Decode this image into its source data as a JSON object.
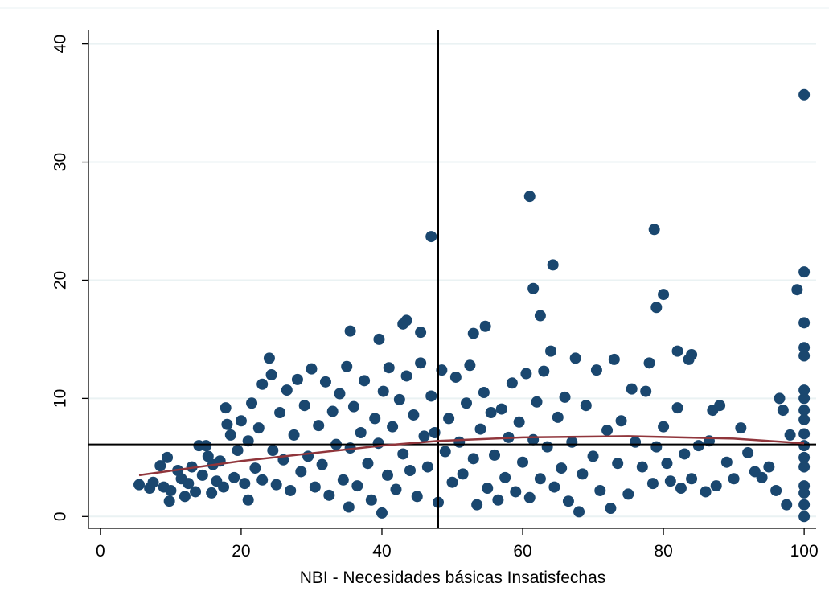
{
  "chart_data": {
    "type": "scatter",
    "xlabel": "NBI - Necesidades básicas Insatisfechas",
    "xlim": [
      -1.7,
      101.7
    ],
    "ylim": [
      -1.0,
      41.2
    ],
    "xticks": [
      0,
      20,
      40,
      60,
      80,
      100
    ],
    "yticks": [
      0,
      10,
      20,
      30,
      40
    ],
    "grid": true,
    "xline": 48,
    "yline": 6.1,
    "series": [
      {
        "color": "#1a476f",
        "x": [
          5.5,
          7,
          7.5,
          8.5,
          9,
          9.5,
          9.8,
          10,
          11,
          11.5,
          12,
          12.5,
          13,
          13.5,
          14,
          14.5,
          15,
          15.3,
          15.8,
          16,
          16.5,
          17,
          17.5,
          17.8,
          18,
          18.5,
          19,
          19.5,
          20,
          20.5,
          21,
          21,
          21.5,
          22,
          22.5,
          23,
          23,
          24,
          24.3,
          24.5,
          25,
          25.5,
          26,
          26.5,
          27,
          27.5,
          28,
          28.5,
          29,
          29.5,
          30,
          30.5,
          31,
          31.5,
          32,
          32.5,
          33,
          33.5,
          34,
          34.5,
          35,
          35.3,
          35.5,
          36,
          36.5,
          37,
          37.5,
          38,
          38.5,
          39,
          39.5,
          40,
          40.2,
          40.8,
          41,
          41.5,
          42,
          42.5,
          43,
          43.5,
          44,
          44.5,
          45,
          45.5,
          46,
          46.5,
          47,
          47.5,
          48,
          48.5,
          49,
          49.5,
          50,
          50.5,
          51,
          51.5,
          52,
          52.5,
          53,
          53.5,
          54,
          54.5,
          55,
          55.5,
          56,
          56.5,
          57,
          57.5,
          58,
          58.5,
          59,
          59.5,
          60,
          60.5,
          61,
          61.5,
          62,
          62.5,
          63,
          63.5,
          64,
          64.5,
          65,
          65.5,
          66,
          66.5,
          67,
          67.5,
          68,
          68.5,
          69,
          70,
          70.5,
          71,
          72,
          72.5,
          73,
          73.5,
          74,
          75,
          75.5,
          76,
          77,
          77.5,
          78,
          78.5,
          79,
          80,
          80.5,
          81,
          82,
          82.5,
          83,
          84,
          85,
          86,
          86.5,
          87,
          87.5,
          88,
          89,
          90,
          91,
          92,
          93,
          94,
          95,
          96,
          96.5,
          97,
          97.5,
          98,
          100,
          100,
          100,
          100,
          100,
          100,
          100,
          100,
          100,
          100,
          100,
          100,
          47,
          61,
          78.7,
          100,
          100,
          99,
          61.5,
          64.3,
          80,
          79,
          62.5,
          35.5,
          39.6,
          43,
          43.5,
          45.5,
          53,
          54.7,
          100,
          100,
          100,
          83.6,
          84,
          82
        ],
        "values": [
          2.7,
          2.4,
          2.9,
          4.3,
          2.5,
          5,
          1.3,
          2.2,
          3.9,
          3.2,
          1.7,
          2.8,
          4.2,
          2.1,
          6,
          3.5,
          6,
          5.1,
          2,
          4.4,
          3,
          4.7,
          2.5,
          9.2,
          7.8,
          6.9,
          3.3,
          5.6,
          8.1,
          2.8,
          1.4,
          6.4,
          9.6,
          4.1,
          7.5,
          3.1,
          11.2,
          13.4,
          12,
          5.6,
          2.7,
          8.8,
          4.8,
          10.7,
          2.2,
          6.9,
          11.6,
          3.8,
          9.4,
          5.1,
          12.5,
          2.5,
          7.7,
          4.4,
          11.4,
          1.8,
          8.9,
          6.1,
          10.4,
          3.1,
          12.7,
          0.8,
          5.8,
          9.3,
          2.6,
          7.1,
          11.5,
          4.5,
          1.4,
          8.3,
          6.2,
          0.3,
          10.6,
          3.5,
          12.6,
          7.6,
          2.3,
          9.9,
          5.3,
          11.9,
          3.9,
          8.6,
          1.7,
          13,
          6.8,
          4.2,
          10.2,
          7.1,
          1.2,
          12.4,
          5.5,
          8.3,
          2.9,
          11.8,
          6.3,
          3.6,
          9.6,
          12.8,
          4.9,
          1,
          7.4,
          10.5,
          2.4,
          8.8,
          5.2,
          1.4,
          9.1,
          3.3,
          6.7,
          11.3,
          2.1,
          8,
          4.6,
          12.1,
          1.6,
          6.5,
          9.7,
          3.2,
          12.3,
          5.9,
          14,
          2.5,
          8.4,
          4.1,
          10.1,
          1.3,
          6.3,
          13.4,
          0.4,
          3.6,
          9.4,
          5.1,
          12.4,
          2.2,
          7.3,
          0.7,
          13.3,
          4.5,
          8.1,
          1.9,
          10.8,
          6.3,
          4.2,
          10.6,
          13,
          2.8,
          5.9,
          7.6,
          4.5,
          3,
          9.2,
          2.4,
          5.3,
          3.2,
          6,
          2.1,
          6.4,
          9,
          2.6,
          9.4,
          4.6,
          3.2,
          7.5,
          5.4,
          3.8,
          3.3,
          4.2,
          2.2,
          10,
          9,
          1,
          6.9,
          0,
          1,
          2,
          2.6,
          4.2,
          5,
          6,
          7,
          8.2,
          9,
          10,
          10.7,
          23.7,
          27.1,
          24.3,
          35.7,
          20.7,
          19.2,
          19.3,
          21.3,
          18.8,
          17.7,
          17,
          15.7,
          15,
          16.3,
          16.6,
          15.6,
          15.5,
          16.1,
          16.4,
          14.3,
          13.6,
          13.3,
          13.7,
          14
        ]
      }
    ],
    "fit": {
      "color": "#90353b",
      "x": [
        5.5,
        20,
        40,
        48,
        60,
        75,
        90,
        100
      ],
      "values": [
        3.5,
        4.7,
        6,
        6.4,
        6.7,
        6.8,
        6.6,
        6.2
      ]
    }
  }
}
